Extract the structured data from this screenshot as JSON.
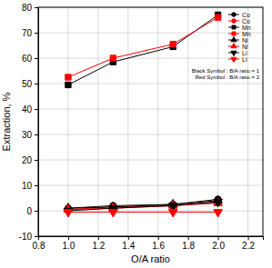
{
  "chart_data": {
    "type": "line",
    "x_label": "O/A ratio",
    "y_label": "Extraction, %",
    "x": [
      1.0,
      1.3,
      1.7,
      2.0
    ],
    "xlim": [
      0.8,
      2.3
    ],
    "xticks": [
      {
        "value": 0.8,
        "label": "0.8"
      },
      {
        "value": 1.0,
        "label": "1.0"
      },
      {
        "value": 1.2,
        "label": "1.2"
      },
      {
        "value": 1.4,
        "label": "1.4"
      },
      {
        "value": 1.6,
        "label": "1.6"
      },
      {
        "value": 1.8,
        "label": "1.8"
      },
      {
        "value": 2.0,
        "label": "2.0"
      },
      {
        "value": 2.2,
        "label": "2.2"
      }
    ],
    "ylim": [
      -10,
      80
    ],
    "yticks": [
      -10,
      0,
      10,
      20,
      30,
      40,
      50,
      60,
      70,
      80
    ],
    "grid": true,
    "legend": "top-right",
    "annotations": [
      "Black Symbol : B/A ratio = 1",
      "Red Symbol : B/A ratio = 2"
    ],
    "series": [
      {
        "name": "Co",
        "color": "#000000",
        "marker": "circle",
        "values": [
          1.0,
          2.0,
          2.5,
          4.5
        ]
      },
      {
        "name": "Co",
        "color": "#ff0000",
        "marker": "circle",
        "values": [
          0.5,
          1.5,
          2.0,
          3.5
        ]
      },
      {
        "name": "Mn",
        "color": "#000000",
        "marker": "square",
        "values": [
          49.5,
          58.5,
          64.5,
          77.0
        ]
      },
      {
        "name": "Mn",
        "color": "#ff0000",
        "marker": "square",
        "values": [
          52.5,
          60.0,
          65.5,
          76.0
        ]
      },
      {
        "name": "Ni",
        "color": "#000000",
        "marker": "triangle-up",
        "values": [
          1.0,
          1.5,
          2.5,
          4.0
        ]
      },
      {
        "name": "Ni",
        "color": "#ff0000",
        "marker": "triangle-up",
        "values": [
          0.5,
          1.0,
          2.0,
          3.0
        ]
      },
      {
        "name": "Li",
        "color": "#000000",
        "marker": "triangle-down",
        "values": [
          0.0,
          1.0,
          2.0,
          3.5
        ]
      },
      {
        "name": "Li",
        "color": "#ff0000",
        "marker": "triangle-down",
        "values": [
          -0.5,
          -0.5,
          -0.5,
          -0.5
        ]
      }
    ]
  }
}
